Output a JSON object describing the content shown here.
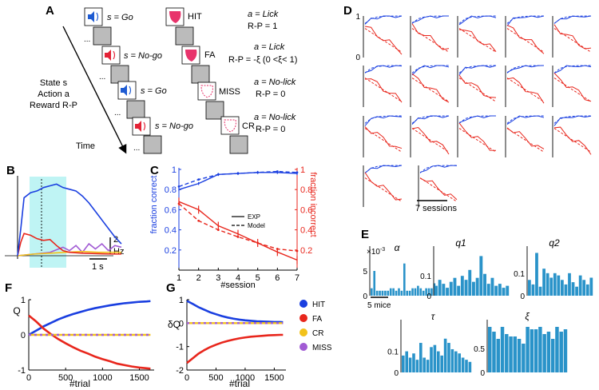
{
  "figure": {
    "panel_labels": [
      "A",
      "B",
      "C",
      "D",
      "E",
      "F",
      "G"
    ],
    "panel_a": {
      "trials": [
        {
          "state": "s = Go",
          "outcome": "HIT",
          "action": "a = Lick",
          "reward": "R-P = 1"
        },
        {
          "state": "s = No-go",
          "outcome": "FA",
          "action": "a = Lick",
          "reward": "R-P = -ξ (0 <ξ< 1)"
        },
        {
          "state": "s = Go",
          "outcome": "MISS",
          "action": "a = No-lick",
          "reward": "R-P = 0"
        },
        {
          "state": "s = No-go",
          "outcome": "CR",
          "action": "a = No-lick",
          "reward": "R-P = 0"
        }
      ],
      "legend_lines": [
        "State s",
        "Action a",
        "Reward R-P"
      ],
      "time_label": "Time",
      "ellipsis": "..."
    },
    "panel_b": {
      "scale_value": "2",
      "scale_unit": "Hz",
      "time_scale": "1 s"
    },
    "panel_d": {
      "sessions_label": "7 sessions",
      "tick_1": "1",
      "tick_0": "0"
    },
    "panel_e": {
      "multiplier": "×10",
      "exponent": "-3",
      "mice_label": "5 mice"
    },
    "panel_fg": {
      "f_ylabel": "Q",
      "g_ylabel": "δQ",
      "xlabel": "#trial",
      "legend": [
        {
          "label": "HIT",
          "color": "#1a3fe0"
        },
        {
          "label": "FA",
          "color": "#e8261c"
        },
        {
          "label": "CR",
          "color": "#f2c21b"
        },
        {
          "label": "MISS",
          "color": "#a15bd4"
        }
      ]
    }
  },
  "chart_data": [
    {
      "type": "line",
      "panel": "C",
      "title": "",
      "xlabel": "#session",
      "ylabel": "fraction correct",
      "y2label": "fraction incorrect",
      "x": [
        1,
        2,
        3,
        4,
        5,
        6,
        7
      ],
      "xlim": [
        0.8,
        7.2
      ],
      "ylim": [
        0.0,
        1.0
      ],
      "y_ticks": [
        0.2,
        0.4,
        0.6,
        0.8,
        1
      ],
      "y2_ticks": [
        0.2,
        0.4,
        0.6,
        0.8,
        1
      ],
      "legend": [
        "EXP",
        "Model"
      ],
      "series": [
        {
          "name": "fraction correct EXP",
          "axis": "left",
          "color": "#1a3fe0",
          "style": "solid",
          "values": [
            0.8,
            0.86,
            0.95,
            0.96,
            0.97,
            0.97,
            0.96
          ]
        },
        {
          "name": "fraction correct Model",
          "axis": "left",
          "color": "#1a3fe0",
          "style": "dashed",
          "values": [
            0.83,
            0.9,
            0.95,
            0.96,
            0.97,
            0.98,
            0.97
          ]
        },
        {
          "name": "fraction incorrect EXP",
          "axis": "right",
          "color": "#e8261c",
          "style": "solid",
          "values": [
            0.68,
            0.6,
            0.44,
            0.36,
            0.27,
            0.18,
            0.1
          ]
        },
        {
          "name": "fraction incorrect Model",
          "axis": "right",
          "color": "#e8261c",
          "style": "dashed",
          "values": [
            0.66,
            0.49,
            0.4,
            0.33,
            0.27,
            0.21,
            0.19
          ]
        }
      ]
    },
    {
      "type": "bar",
      "panel": "E",
      "plots": [
        {
          "name": "α",
          "ytick_labels": [
            "5",
            "0"
          ],
          "ymax": 10,
          "tick_values": [
            5,
            0
          ],
          "values": [
            1.5,
            5,
            1,
            1,
            1,
            1,
            1,
            1.5,
            1.5,
            1,
            1.5,
            1,
            6.5,
            1,
            1,
            1.5,
            1.5,
            2,
            1.5,
            1,
            1.5,
            1.5,
            1.5,
            2.5
          ]
        },
        {
          "name": "q1",
          "ytick_labels": [
            "0.1",
            "0"
          ],
          "ymax": 0.25,
          "tick_values": [
            0.1,
            0
          ],
          "values": [
            0.05,
            0.08,
            0.06,
            0.04,
            0.07,
            0.09,
            0.05,
            0.1,
            0.08,
            0.13,
            0.07,
            0.09,
            0.2,
            0.11,
            0.06,
            0.09,
            0.05,
            0.06,
            0.04,
            0.05
          ]
        },
        {
          "name": "q2",
          "ytick_labels": [
            "0.1",
            "0"
          ],
          "ymax": 0.22,
          "tick_values": [
            0.1,
            0
          ],
          "values": [
            0.07,
            0.05,
            0.19,
            0.04,
            0.12,
            0.1,
            0.08,
            0.1,
            0.09,
            0.07,
            0.05,
            0.1,
            0.06,
            0.04,
            0.09,
            0.07,
            0.05,
            0.08
          ]
        },
        {
          "name": "τ",
          "ytick_labels": [
            "0.1",
            "0"
          ],
          "ymax": 0.25,
          "tick_values": [
            0.1,
            0
          ],
          "values": [
            0.08,
            0.1,
            0.07,
            0.09,
            0.06,
            0.14,
            0.07,
            0.06,
            0.12,
            0.13,
            0.1,
            0.08,
            0.16,
            0.14,
            0.11,
            0.1,
            0.09,
            0.07,
            0.06,
            0.05
          ]
        },
        {
          "name": "ξ",
          "ytick_labels": [
            "0.5",
            "0"
          ],
          "ymax": 1.1,
          "tick_values": [
            0.5,
            0
          ],
          "values": [
            0.95,
            0.85,
            0.7,
            0.95,
            0.8,
            0.75,
            0.75,
            0.7,
            0.6,
            0.95,
            0.9,
            0.9,
            0.95,
            0.8,
            0.85,
            0.7,
            0.95,
            0.85,
            0.9
          ]
        }
      ]
    },
    {
      "type": "line",
      "panel": "F",
      "xlabel": "#trial",
      "ylabel": "Q",
      "xlim": [
        0,
        1700
      ],
      "ylim": [
        -1,
        1
      ],
      "x_ticks": [
        0,
        500,
        1000,
        1500
      ],
      "y_ticks": [
        -1,
        0,
        1
      ],
      "series": [
        {
          "name": "HIT",
          "color": "#1a3fe0",
          "x": [
            0,
            100,
            200,
            300,
            400,
            500,
            600,
            700,
            800,
            900,
            1000,
            1100,
            1200,
            1300,
            1400,
            1500,
            1600,
            1650
          ],
          "values": [
            0.0,
            0.12,
            0.24,
            0.34,
            0.44,
            0.52,
            0.59,
            0.65,
            0.71,
            0.76,
            0.8,
            0.84,
            0.87,
            0.9,
            0.92,
            0.94,
            0.95,
            0.96
          ]
        },
        {
          "name": "FA",
          "color": "#e8261c",
          "x": [
            0,
            100,
            200,
            300,
            400,
            500,
            600,
            700,
            800,
            900,
            1000,
            1100,
            1200,
            1300,
            1400,
            1500,
            1600,
            1650
          ],
          "values": [
            0.55,
            0.38,
            0.18,
            0.02,
            -0.12,
            -0.24,
            -0.35,
            -0.45,
            -0.53,
            -0.62,
            -0.69,
            -0.75,
            -0.82,
            -0.86,
            -0.9,
            -0.93,
            -0.95,
            -0.96
          ]
        },
        {
          "name": "CR",
          "color": "#f2c21b",
          "x": [
            0,
            1650
          ],
          "values": [
            0,
            0
          ]
        },
        {
          "name": "MISS",
          "color": "#a15bd4",
          "x": [
            0,
            1650
          ],
          "values": [
            0,
            0
          ]
        }
      ]
    },
    {
      "type": "line",
      "panel": "G",
      "xlabel": "#trial",
      "ylabel": "δQ",
      "xlim": [
        0,
        1700
      ],
      "ylim": [
        -2,
        1
      ],
      "x_ticks": [
        0,
        500,
        1000,
        1500
      ],
      "y_ticks": [
        -2,
        -1,
        0,
        1
      ],
      "series": [
        {
          "name": "HIT",
          "color": "#1a3fe0",
          "x": [
            0,
            100,
            200,
            300,
            400,
            500,
            600,
            700,
            800,
            900,
            1000,
            1100,
            1200,
            1300,
            1400,
            1500,
            1600,
            1650
          ],
          "values": [
            0.95,
            0.82,
            0.68,
            0.57,
            0.46,
            0.38,
            0.3,
            0.24,
            0.19,
            0.15,
            0.12,
            0.1,
            0.08,
            0.07,
            0.06,
            0.05,
            0.05,
            0.04
          ]
        },
        {
          "name": "FA",
          "color": "#e8261c",
          "x": [
            0,
            100,
            200,
            300,
            400,
            500,
            600,
            700,
            800,
            900,
            1000,
            1100,
            1200,
            1300,
            1400,
            1500,
            1600,
            1650
          ],
          "values": [
            -1.7,
            -1.5,
            -1.3,
            -1.15,
            -1.02,
            -0.92,
            -0.83,
            -0.76,
            -0.7,
            -0.65,
            -0.61,
            -0.58,
            -0.56,
            -0.54,
            -0.52,
            -0.51,
            -0.5,
            -0.5
          ]
        },
        {
          "name": "CR",
          "color": "#f2c21b",
          "x": [
            0,
            1650
          ],
          "values": [
            0,
            0
          ]
        },
        {
          "name": "MISS",
          "color": "#a15bd4",
          "x": [
            0,
            1650
          ],
          "values": [
            0,
            0
          ]
        }
      ]
    },
    {
      "type": "line",
      "panel": "B",
      "xlabel": "",
      "ylabel": "",
      "xlim": [
        0,
        3.3
      ],
      "ylim": [
        0,
        4.5
      ],
      "series": [
        {
          "name": "HIT",
          "color": "#1a3fe0",
          "x": [
            0,
            0.1,
            0.2,
            0.4,
            0.6,
            0.8,
            1.0,
            1.2,
            1.4,
            1.6,
            1.8,
            2.0,
            2.2,
            2.4,
            2.6,
            2.8,
            3.0,
            3.2
          ],
          "values": [
            0,
            1.6,
            3.4,
            3.7,
            3.8,
            4.0,
            4.1,
            4.2,
            4.0,
            3.9,
            3.8,
            3.5,
            3.1,
            2.6,
            2.1,
            1.6,
            1.1,
            0.7
          ]
        },
        {
          "name": "FA",
          "color": "#e8261c",
          "x": [
            0,
            0.1,
            0.2,
            0.4,
            0.6,
            0.8,
            1.0,
            1.2,
            1.4,
            1.6,
            2.0,
            2.5,
            3.0,
            3.2
          ],
          "values": [
            0,
            0.8,
            1.3,
            1.2,
            1.0,
            0.9,
            0.95,
            0.6,
            0.3,
            0.2,
            0.15,
            0.12,
            0.1,
            0.1
          ]
        },
        {
          "name": "CR",
          "color": "#f2c21b",
          "x": [
            0,
            0.5,
            1.0,
            1.5,
            2.0,
            2.5,
            3.0,
            3.2
          ],
          "values": [
            0,
            0.1,
            0.15,
            0.2,
            0.25,
            0.2,
            0.2,
            0.2
          ]
        },
        {
          "name": "MISS",
          "color": "#a15bd4",
          "x": [
            0,
            0.5,
            1.0,
            1.4,
            1.6,
            1.8,
            2.0,
            2.2,
            2.4,
            2.6,
            2.8,
            3.0,
            3.2
          ],
          "values": [
            0,
            0.1,
            0.2,
            0.5,
            0.3,
            0.6,
            0.2,
            0.7,
            0.4,
            0.7,
            0.3,
            0.6,
            0.5
          ]
        }
      ]
    }
  ]
}
